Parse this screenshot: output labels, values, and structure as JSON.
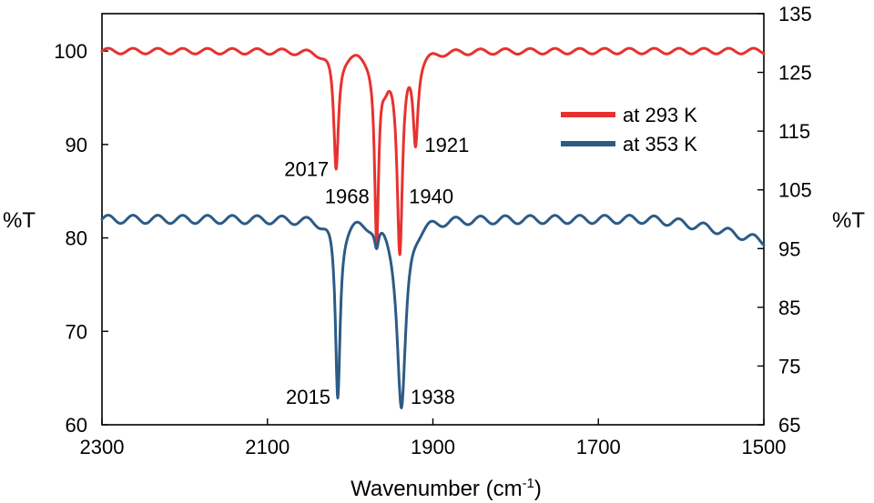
{
  "chart_data": {
    "type": "line",
    "title": "",
    "xlabel": "Wavenumber (cm",
    "xlabel_superscript": "-1",
    "xlabel_suffix": ")",
    "ylabel_left": "%T",
    "ylabel_right": "%T",
    "xlim": [
      2300,
      1500
    ],
    "x_reversed": true,
    "ylim_left": [
      60,
      104
    ],
    "ylim_right": [
      65,
      135
    ],
    "x_ticks": [
      2300,
      2100,
      1900,
      1700,
      1500
    ],
    "y_ticks_left": [
      60,
      70,
      80,
      90,
      100
    ],
    "y_ticks_right": [
      65,
      75,
      85,
      95,
      105,
      115,
      125,
      135
    ],
    "grid": false,
    "legend_position": "top-right",
    "series": [
      {
        "name": "at 293 K",
        "axis": "left",
        "color": "#e8312f",
        "baseline": 100,
        "ripple": 0.3,
        "peaks": [
          {
            "x": 2017,
            "depth": 12.6,
            "width": 3.5
          },
          {
            "x": 1968,
            "depth": 19.6,
            "width": 3.0
          },
          {
            "x": 1958,
            "depth": 2.5,
            "width": 6
          },
          {
            "x": 1940,
            "depth": 21.0,
            "width": 4.0
          },
          {
            "x": 1921,
            "depth": 9.0,
            "width": 3.5
          }
        ],
        "points": [
          [
            2300,
            100.0
          ],
          [
            2250,
            100.2
          ],
          [
            2200,
            99.9
          ],
          [
            2150,
            100.2
          ],
          [
            2100,
            100.1
          ],
          [
            2050,
            100.0
          ],
          [
            2030,
            99.6
          ],
          [
            2017,
            87.4
          ],
          [
            2005,
            99.5
          ],
          [
            1985,
            99.7
          ],
          [
            1968,
            80.4
          ],
          [
            1958,
            97.5
          ],
          [
            1950,
            97.0
          ],
          [
            1940,
            79.0
          ],
          [
            1930,
            95.0
          ],
          [
            1921,
            91.0
          ],
          [
            1910,
            99.3
          ],
          [
            1900,
            100.1
          ],
          [
            1800,
            100.0
          ],
          [
            1700,
            99.9
          ],
          [
            1600,
            100.1
          ],
          [
            1500,
            100.0
          ]
        ]
      },
      {
        "name": "at 353 K",
        "axis": "right",
        "color": "#2c5b86",
        "baseline": 100,
        "ripple": 0.7,
        "tail_to": 96.2,
        "peaks": [
          {
            "x": 2015,
            "depth": 30.2,
            "width": 3.5
          },
          {
            "x": 1968,
            "depth": 3.7,
            "width": 3.0
          },
          {
            "x": 1938,
            "depth": 32.3,
            "width": 6.5
          }
        ],
        "points": [
          [
            2300,
            100.0
          ],
          [
            2250,
            100.6
          ],
          [
            2200,
            99.9
          ],
          [
            2100,
            100.3
          ],
          [
            2050,
            100.0
          ],
          [
            2030,
            100.3
          ],
          [
            2015,
            69.8
          ],
          [
            2000,
            99.5
          ],
          [
            1980,
            99.2
          ],
          [
            1968,
            96.3
          ],
          [
            1955,
            99.0
          ],
          [
            1938,
            67.7
          ],
          [
            1920,
            98.5
          ],
          [
            1900,
            99.8
          ],
          [
            1800,
            100.2
          ],
          [
            1700,
            100.1
          ],
          [
            1650,
            99.0
          ],
          [
            1600,
            98.6
          ],
          [
            1550,
            98.0
          ],
          [
            1500,
            96.2
          ]
        ]
      }
    ],
    "annotations": [
      {
        "text": "2017",
        "x": 2017,
        "y": 87.4,
        "axis": "left",
        "anchor": "end"
      },
      {
        "text": "1921",
        "x": 1921,
        "y": 90.0,
        "axis": "left",
        "anchor": "start"
      },
      {
        "text": "1968",
        "x": 1968,
        "y": 84.5,
        "axis": "left",
        "anchor": "end"
      },
      {
        "text": "1940",
        "x": 1940,
        "y": 84.5,
        "axis": "left",
        "anchor": "start"
      },
      {
        "text": "2015",
        "x": 2015,
        "y": 69.8,
        "axis": "right",
        "anchor": "end"
      },
      {
        "text": "1938",
        "x": 1938,
        "y": 69.8,
        "axis": "right",
        "anchor": "start"
      }
    ]
  }
}
